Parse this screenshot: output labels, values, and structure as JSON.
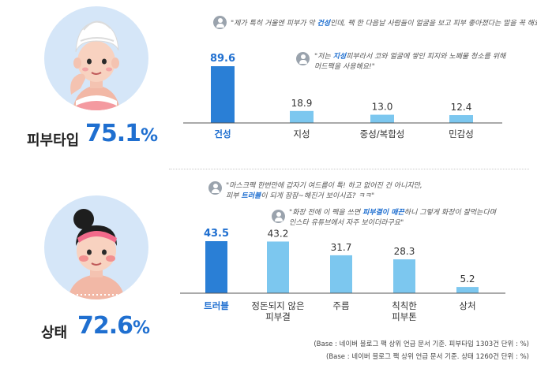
{
  "sections": [
    {
      "label": "피부타입",
      "value_number": "75.1",
      "value_unit": "%",
      "quotes": [
        {
          "pre": "\"제가 특히 거울엔 피부가 악 ",
          "highlight": "건성",
          "post": "인데, 팩 한 다음날 사람들이 얼굴을 보고 피부 좋아졌다는 말을 꼭 해요.\""
        },
        {
          "line1_pre": "\"저는 ",
          "highlight": "지성",
          "line1_post": "피부라서 코와 얼굴에 쌓인 피지와 노폐물 청소를 위해",
          "line2": "머드팩을 사용해요!\""
        }
      ]
    },
    {
      "label": "상태",
      "value_number": "72.6",
      "value_unit": "%",
      "quotes": [
        {
          "line1": "\"마스크팩 한번만에 갑자기 여드름이 톡! 하고 없어진 건 아니지만,",
          "line2_pre": "피부 ",
          "highlight": "트러블",
          "line2_post": "이 되게 잠잠~해진거 보이시죠? ㅋㅋ\""
        },
        {
          "line1_pre": "\"화장 전에 이 팩을 쓰면 ",
          "highlight": "피부결이 매끈",
          "line1_post": "하니 그렇게 화장이 잘먹는다며",
          "line2": "인스타 유튜브에서 자주 보이더라구요\""
        }
      ]
    }
  ],
  "chart_data": [
    {
      "type": "bar",
      "categories": [
        "건성",
        "지성",
        "중성/복합성",
        "민감성"
      ],
      "values": [
        89.6,
        18.9,
        13.0,
        12.4
      ],
      "value_labels": [
        "89.6",
        "18.9",
        "13.0",
        "12.4"
      ],
      "highlight_index": 0,
      "title": "",
      "xlabel": "",
      "ylabel": "",
      "ylim": [
        0,
        100
      ],
      "grid": false,
      "legend": "none"
    },
    {
      "type": "bar",
      "categories": [
        "트러블",
        "정돈되지 않은 피부결",
        "주름",
        "칙칙한 피부톤",
        "상처"
      ],
      "values": [
        43.5,
        43.2,
        31.7,
        28.3,
        5.2
      ],
      "value_labels": [
        "43.5",
        "43.2",
        "31.7",
        "28.3",
        "5.2"
      ],
      "highlight_index": 0,
      "title": "",
      "xlabel": "",
      "ylabel": "",
      "ylim": [
        0,
        50
      ],
      "grid": false,
      "legend": "none"
    }
  ],
  "footnotes": [
    "(Base : 네이버 블로그 팩 상위 언급 문서 기준. 피부타입 1303건 단위 : %)",
    "(Base : 네이버 블로그 팩 상위 언급 문서 기준. 상태 1260건 단위 : %)"
  ],
  "colors": {
    "highlight": "#2a7fd6",
    "bar": "#7cc7ef",
    "accent_text": "#1f6fd0",
    "axis": "#555555"
  }
}
